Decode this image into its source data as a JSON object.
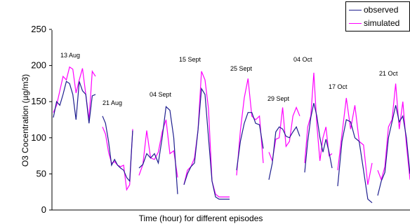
{
  "chart_data": {
    "type": "line",
    "xlabel": "Time (hour) for different episodes",
    "ylabel": "O3 Cocentration (µg/m3)",
    "ylim": [
      0,
      250
    ],
    "yticks": [
      0,
      50,
      100,
      150,
      200,
      250
    ],
    "grid": false,
    "legend_position": "top-right",
    "colors": {
      "observed": "#1f1f8f",
      "simulated": "#ff00ff"
    },
    "episodes": [
      {
        "label": "13 Aug",
        "observed": [
          128,
          150,
          145,
          160,
          178,
          175,
          160,
          125,
          178,
          165,
          160,
          120,
          158,
          160
        ],
        "simulated": [
          135,
          145,
          165,
          185,
          180,
          198,
          195,
          162,
          180,
          196,
          160,
          125,
          192,
          185
        ]
      },
      {
        "label": "21 Aug",
        "observed": [
          130,
          120,
          95,
          62,
          70,
          62,
          58,
          55,
          45,
          40,
          110
        ],
        "simulated": [
          115,
          105,
          80,
          65,
          67,
          62,
          60,
          62,
          28,
          35,
          112
        ]
      },
      {
        "label": "04 Sept",
        "observed": [
          58,
          63,
          78,
          72,
          78,
          65,
          100,
          143,
          138,
          100,
          22
        ],
        "simulated": [
          48,
          63,
          110,
          72,
          70,
          80,
          108,
          125,
          78,
          82,
          45
        ]
      },
      {
        "label": "15 Sept",
        "observed": [
          35,
          50,
          60,
          65,
          110,
          168,
          160,
          100,
          40,
          18,
          15,
          15,
          15,
          15
        ],
        "simulated": [
          35,
          55,
          60,
          72,
          110,
          192,
          180,
          140,
          40,
          22,
          18,
          18,
          18,
          18
        ]
      },
      {
        "label": "25 Sept",
        "observed": [
          55,
          95,
          120,
          135,
          135,
          120,
          118,
          85
        ],
        "simulated": [
          48,
          110,
          155,
          182,
          130,
          125,
          130,
          65
        ]
      },
      {
        "label": "29 Sept",
        "observed": [
          42,
          65,
          108,
          115,
          112,
          102,
          100,
          108,
          115,
          102
        ],
        "simulated": [
          80,
          68,
          98,
          100,
          142,
          88,
          95,
          130,
          142,
          130
        ]
      },
      {
        "label": "04 Oct",
        "observed": [
          52,
          95,
          128,
          148,
          130,
          100,
          80,
          98,
          80,
          58
        ],
        "simulated": [
          65,
          115,
          130,
          190,
          118,
          68,
          100,
          115,
          75,
          78
        ]
      },
      {
        "label": "17 Oct",
        "observed": [
          33,
          95,
          125,
          122,
          100,
          95,
          55,
          15,
          10
        ],
        "simulated": [
          55,
          105,
          155,
          112,
          145,
          95,
          90,
          35,
          65
        ]
      },
      {
        "label": "21 Oct",
        "observed": [
          20,
          40,
          52,
          100,
          122,
          145,
          122,
          130,
          100,
          50
        ],
        "simulated": [
          55,
          42,
          60,
          115,
          125,
          175,
          112,
          150,
          90,
          42
        ]
      }
    ]
  }
}
